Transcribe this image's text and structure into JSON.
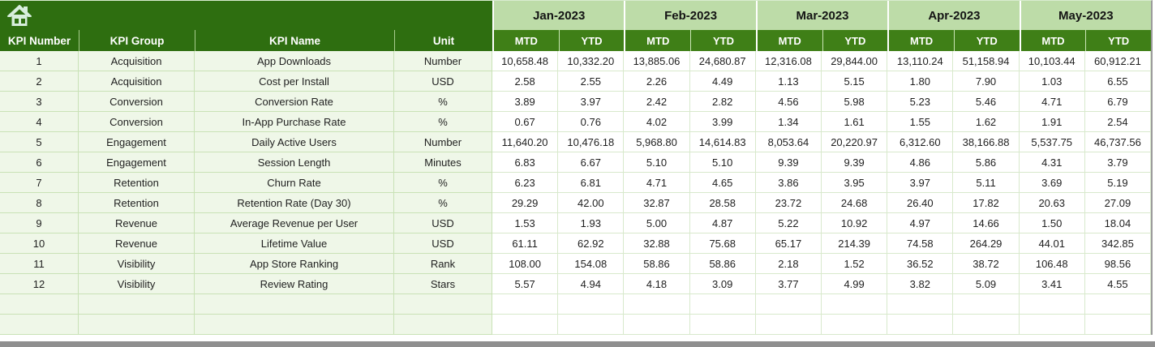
{
  "app": {
    "description": "KPI tracking spreadsheet",
    "colors": {
      "header_dark_green": "#2e6e10",
      "subheader_green": "#3f7f17",
      "month_band_green": "#bddca8",
      "row_light_green": "#eff7e8",
      "value_cell_white": "#ffffff",
      "grid_green": "#c9e2b6",
      "bottom_bar_grey": "#8f8f8f",
      "home_icon_color": "#d7eedd"
    },
    "icons": {
      "home": "home-icon"
    }
  },
  "table": {
    "left_headers": [
      "KPI Number",
      "KPI Group",
      "KPI Name",
      "Unit"
    ],
    "months": [
      "Jan-2023",
      "Feb-2023",
      "Mar-2023",
      "Apr-2023",
      "May-2023"
    ],
    "sub_headers": [
      "MTD",
      "YTD"
    ],
    "empty_rows": 2,
    "rows": [
      {
        "number": "1",
        "group": "Acquisition",
        "name": "App Downloads",
        "unit": "Number",
        "values": [
          "10,658.48",
          "10,332.20",
          "13,885.06",
          "24,680.87",
          "12,316.08",
          "29,844.00",
          "13,110.24",
          "51,158.94",
          "10,103.44",
          "60,912.21"
        ]
      },
      {
        "number": "2",
        "group": "Acquisition",
        "name": "Cost per Install",
        "unit": "USD",
        "values": [
          "2.58",
          "2.55",
          "2.26",
          "4.49",
          "1.13",
          "5.15",
          "1.80",
          "7.90",
          "1.03",
          "6.55"
        ]
      },
      {
        "number": "3",
        "group": "Conversion",
        "name": "Conversion Rate",
        "unit": "%",
        "values": [
          "3.89",
          "3.97",
          "2.42",
          "2.82",
          "4.56",
          "5.98",
          "5.23",
          "5.46",
          "4.71",
          "6.79"
        ]
      },
      {
        "number": "4",
        "group": "Conversion",
        "name": "In-App Purchase Rate",
        "unit": "%",
        "values": [
          "0.67",
          "0.76",
          "4.02",
          "3.99",
          "1.34",
          "1.61",
          "1.55",
          "1.62",
          "1.91",
          "2.54"
        ]
      },
      {
        "number": "5",
        "group": "Engagement",
        "name": "Daily Active Users",
        "unit": "Number",
        "values": [
          "11,640.20",
          "10,476.18",
          "5,968.80",
          "14,614.83",
          "8,053.64",
          "20,220.97",
          "6,312.60",
          "38,166.88",
          "5,537.75",
          "46,737.56"
        ]
      },
      {
        "number": "6",
        "group": "Engagement",
        "name": "Session Length",
        "unit": "Minutes",
        "values": [
          "6.83",
          "6.67",
          "5.10",
          "5.10",
          "9.39",
          "9.39",
          "4.86",
          "5.86",
          "4.31",
          "3.79"
        ]
      },
      {
        "number": "7",
        "group": "Retention",
        "name": "Churn Rate",
        "unit": "%",
        "values": [
          "6.23",
          "6.81",
          "4.71",
          "4.65",
          "3.86",
          "3.95",
          "3.97",
          "5.11",
          "3.69",
          "5.19"
        ]
      },
      {
        "number": "8",
        "group": "Retention",
        "name": "Retention Rate (Day 30)",
        "unit": "%",
        "values": [
          "29.29",
          "42.00",
          "32.87",
          "28.58",
          "23.72",
          "24.68",
          "26.40",
          "17.82",
          "20.63",
          "27.09"
        ]
      },
      {
        "number": "9",
        "group": "Revenue",
        "name": "Average Revenue per User",
        "unit": "USD",
        "values": [
          "1.53",
          "1.93",
          "5.00",
          "4.87",
          "5.22",
          "10.92",
          "4.97",
          "14.66",
          "1.50",
          "18.04"
        ]
      },
      {
        "number": "10",
        "group": "Revenue",
        "name": "Lifetime Value",
        "unit": "USD",
        "values": [
          "61.11",
          "62.92",
          "32.88",
          "75.68",
          "65.17",
          "214.39",
          "74.58",
          "264.29",
          "44.01",
          "342.85"
        ]
      },
      {
        "number": "11",
        "group": "Visibility",
        "name": "App Store Ranking",
        "unit": "Rank",
        "values": [
          "108.00",
          "154.08",
          "58.86",
          "58.86",
          "2.18",
          "1.52",
          "36.52",
          "38.72",
          "106.48",
          "98.56"
        ]
      },
      {
        "number": "12",
        "group": "Visibility",
        "name": "Review Rating",
        "unit": "Stars",
        "values": [
          "5.57",
          "4.94",
          "4.18",
          "3.09",
          "3.77",
          "4.99",
          "3.82",
          "5.09",
          "3.41",
          "4.55"
        ]
      }
    ]
  }
}
